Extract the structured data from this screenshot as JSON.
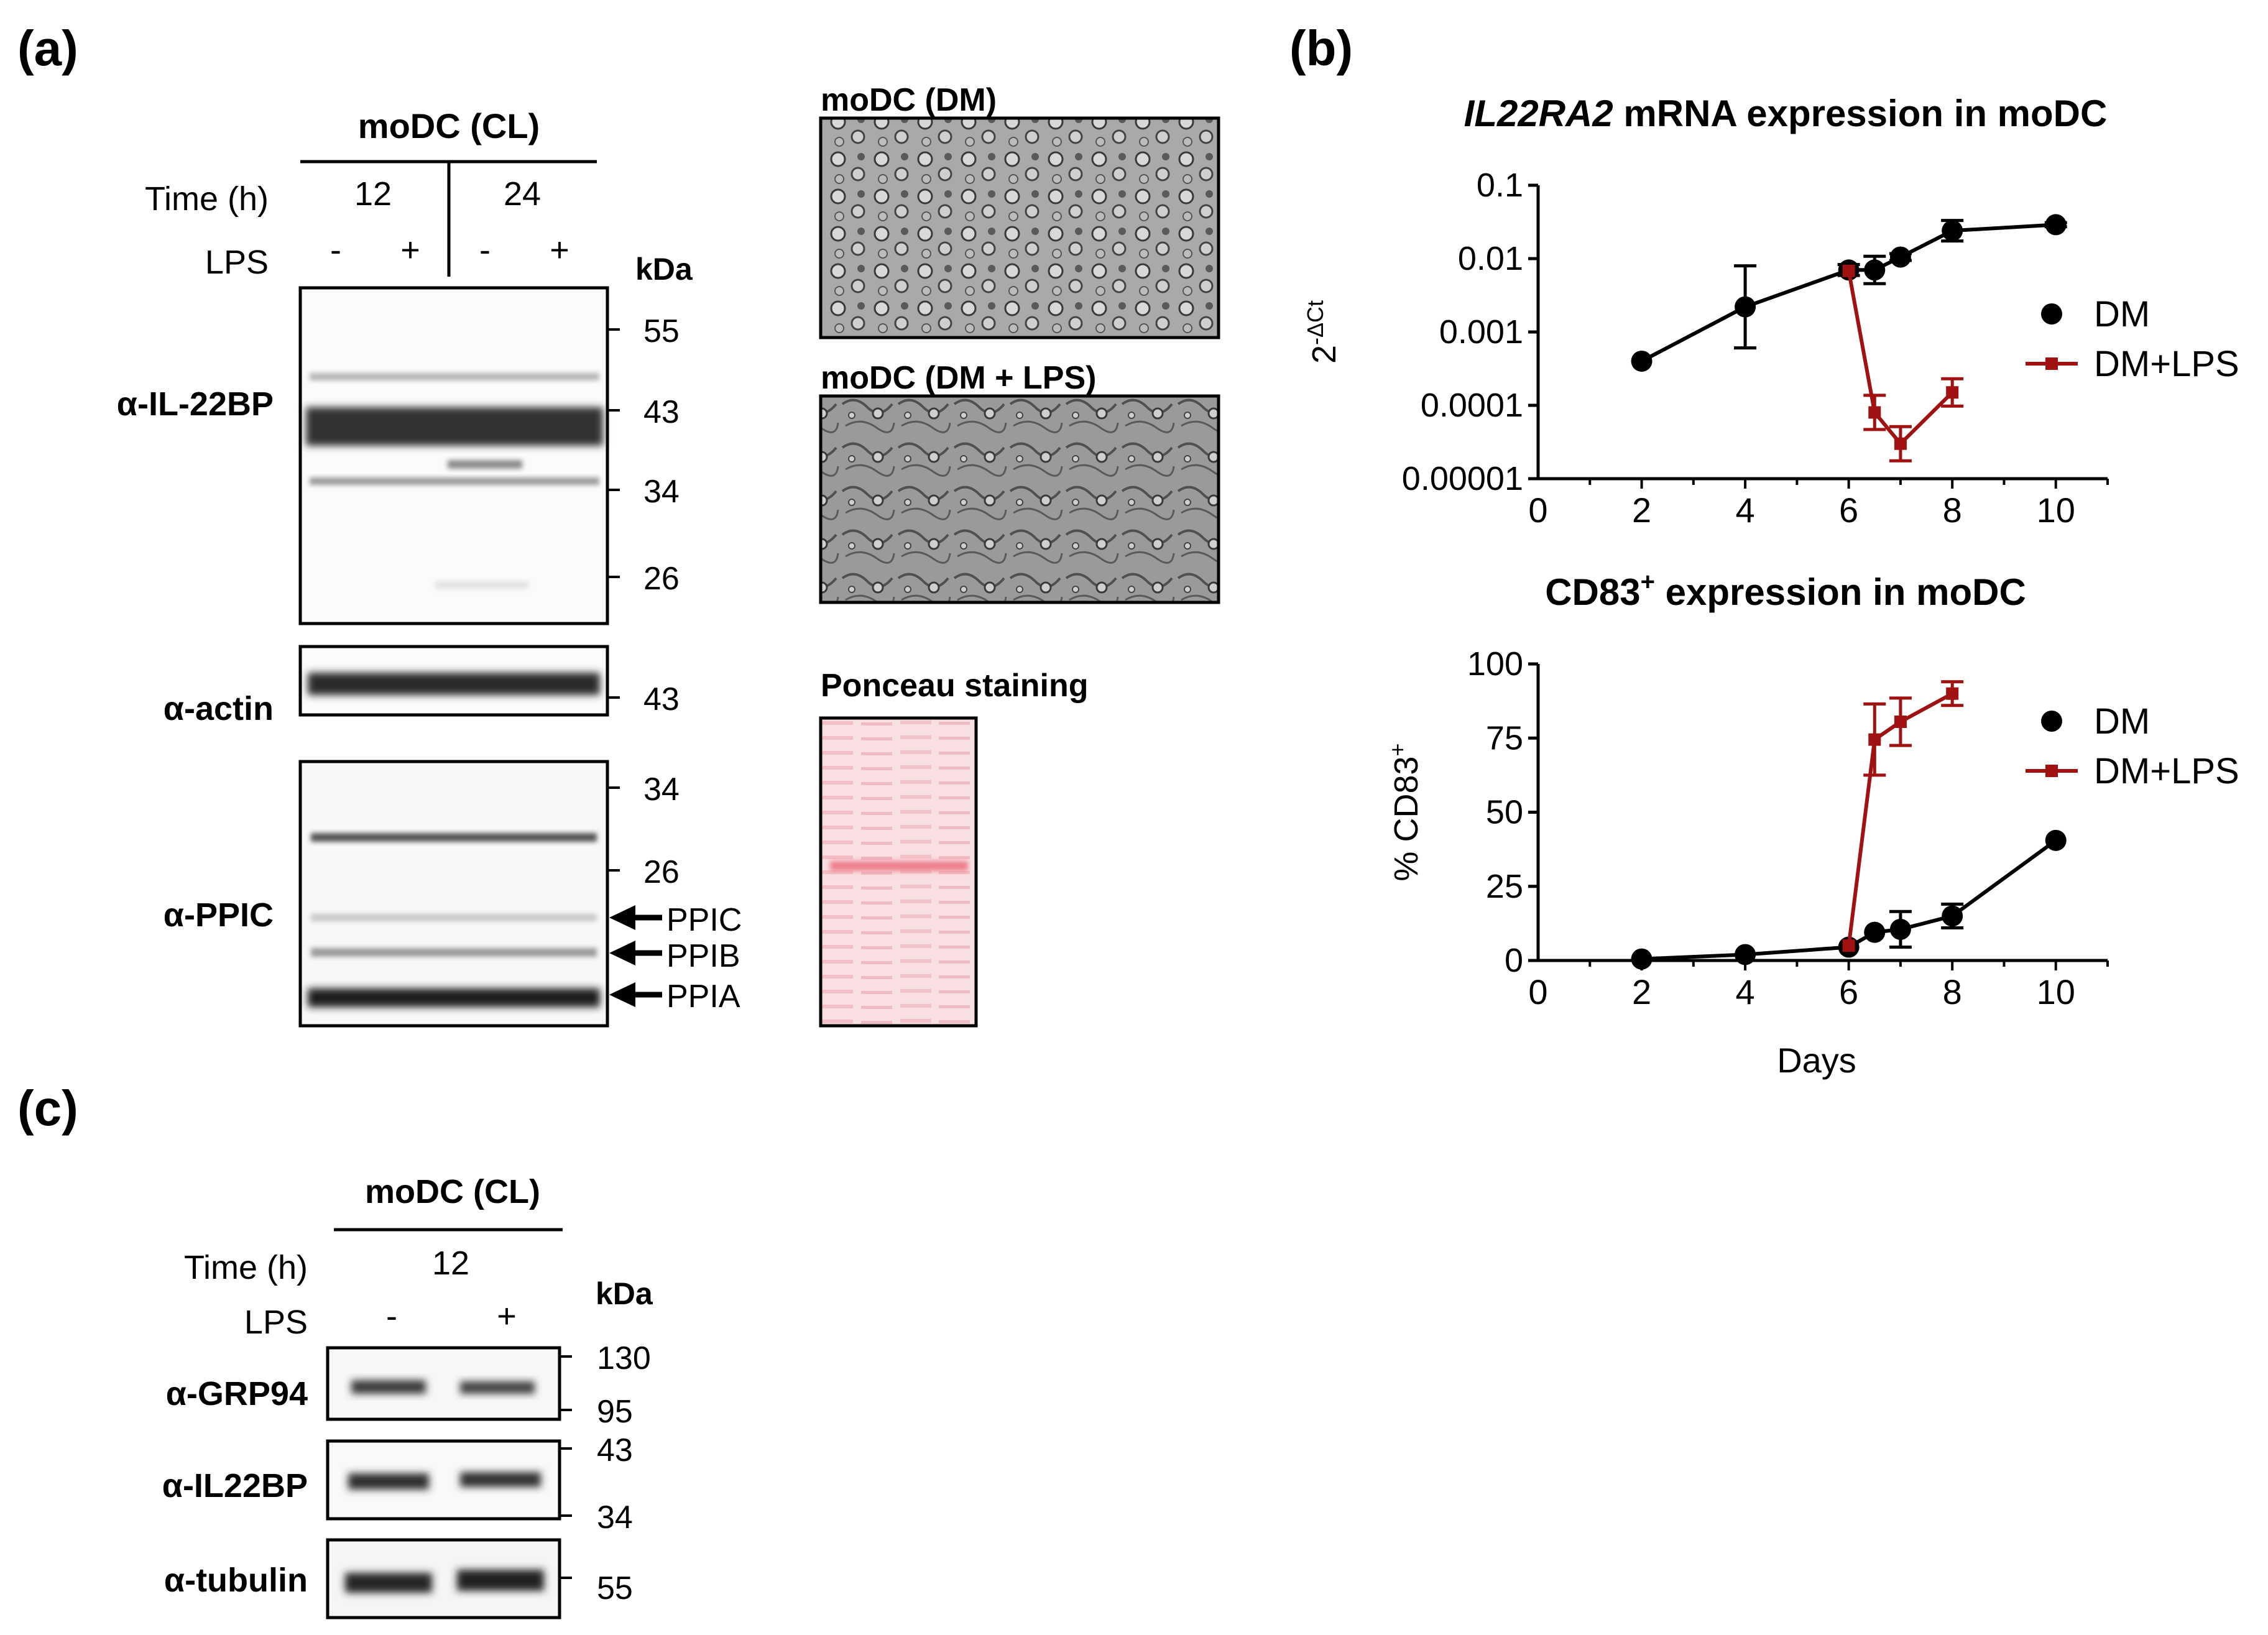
{
  "panel_a": {
    "label": "(a)",
    "header": "moDC (CL)",
    "time_label": "Time (h)",
    "time_values": [
      "12",
      "24"
    ],
    "lps_label": "LPS",
    "lps_signs": [
      "-",
      "+",
      "-",
      "+"
    ],
    "kda_label": "kDa",
    "blot_il22bp": {
      "label": "α-IL-22BP",
      "markers": [
        "55",
        "43",
        "34",
        "26"
      ]
    },
    "blot_actin": {
      "label": "α-actin",
      "markers": [
        "43"
      ]
    },
    "blot_ppic": {
      "label": "α-PPIC",
      "markers": [
        "34",
        "26"
      ],
      "arrows": [
        "PPIC",
        "PPIB",
        "PPIA"
      ]
    },
    "micro_dm": "moDC (DM)",
    "micro_dm_lps": "moDC (DM + LPS)",
    "ponceau": "Ponceau staining"
  },
  "panel_b": {
    "label": "(b)"
  },
  "panel_c": {
    "label": "(c)",
    "header": "moDC (CL)",
    "time_label": "Time (h)",
    "time_value": "12",
    "lps_label": "LPS",
    "lps_signs": [
      "-",
      "+"
    ],
    "kda_label": "kDa",
    "blot_grp94": {
      "label": "α-GRP94",
      "markers": [
        "130",
        "95"
      ]
    },
    "blot_il22bp": {
      "label": "α-IL22BP",
      "markers": [
        "43",
        "34"
      ]
    },
    "blot_tubulin": {
      "label": "α-tubulin",
      "markers": [
        "55"
      ]
    }
  },
  "colors": {
    "dm": "#000000",
    "dm_lps": "#a01212",
    "ponceau": "#ee7f8e"
  },
  "chart_data": [
    {
      "type": "line",
      "title_italic": "IL22RA2",
      "title_rest": " mRNA expression in moDC",
      "ylabel": "2-ΔCt",
      "ylabel_base": "2",
      "ylabel_sup": "-ΔCt",
      "yscale": "log",
      "ylim": [
        1e-05,
        0.1
      ],
      "yticks": [
        "0.1",
        "0.01",
        "0.001",
        "0.0001",
        "0.00001"
      ],
      "xlim": [
        0,
        11
      ],
      "xticks": [
        "0",
        "2",
        "4",
        "6",
        "8",
        "10"
      ],
      "legend": [
        "DM",
        "DM+LPS"
      ],
      "series": [
        {
          "name": "DM",
          "x": [
            2,
            4,
            6,
            6.5,
            7,
            8,
            10
          ],
          "y": [
            0.0004,
            0.0022,
            0.007,
            0.007,
            0.0105,
            0.024,
            0.029
          ],
          "err": [
            0,
            0.6,
            0.08,
            0.2,
            0.05,
            0.15,
            0.03
          ]
        },
        {
          "name": "DM+LPS",
          "x": [
            6,
            6.5,
            7,
            8
          ],
          "y": [
            0.0068,
            8e-05,
            3e-05,
            0.00015
          ],
          "err": [
            0,
            0.25,
            0.25,
            0.2
          ]
        }
      ]
    },
    {
      "type": "line",
      "title": "CD83",
      "title_sup": "+",
      "title_rest": " expression in moDC",
      "ylabel": "% CD83+",
      "ylabel_base": "% CD83",
      "ylabel_sup": "+",
      "xlabel": "Days",
      "ylim": [
        0,
        100
      ],
      "yticks": [
        "0",
        "25",
        "50",
        "75",
        "100"
      ],
      "xlim": [
        0,
        11
      ],
      "xticks": [
        "0",
        "2",
        "4",
        "6",
        "8",
        "10"
      ],
      "legend": [
        "DM",
        "DM+LPS"
      ],
      "series": [
        {
          "name": "DM",
          "x": [
            2,
            4,
            6,
            6.5,
            7,
            8,
            10
          ],
          "y": [
            0.5,
            2,
            4.5,
            9.5,
            10.5,
            15,
            40.5
          ],
          "err": [
            0,
            0,
            0,
            0,
            6,
            4,
            0
          ]
        },
        {
          "name": "DM+LPS",
          "x": [
            6,
            6.5,
            7,
            8
          ],
          "y": [
            5,
            74.5,
            80.5,
            90
          ],
          "err": [
            0,
            12,
            8,
            4
          ]
        }
      ]
    }
  ]
}
